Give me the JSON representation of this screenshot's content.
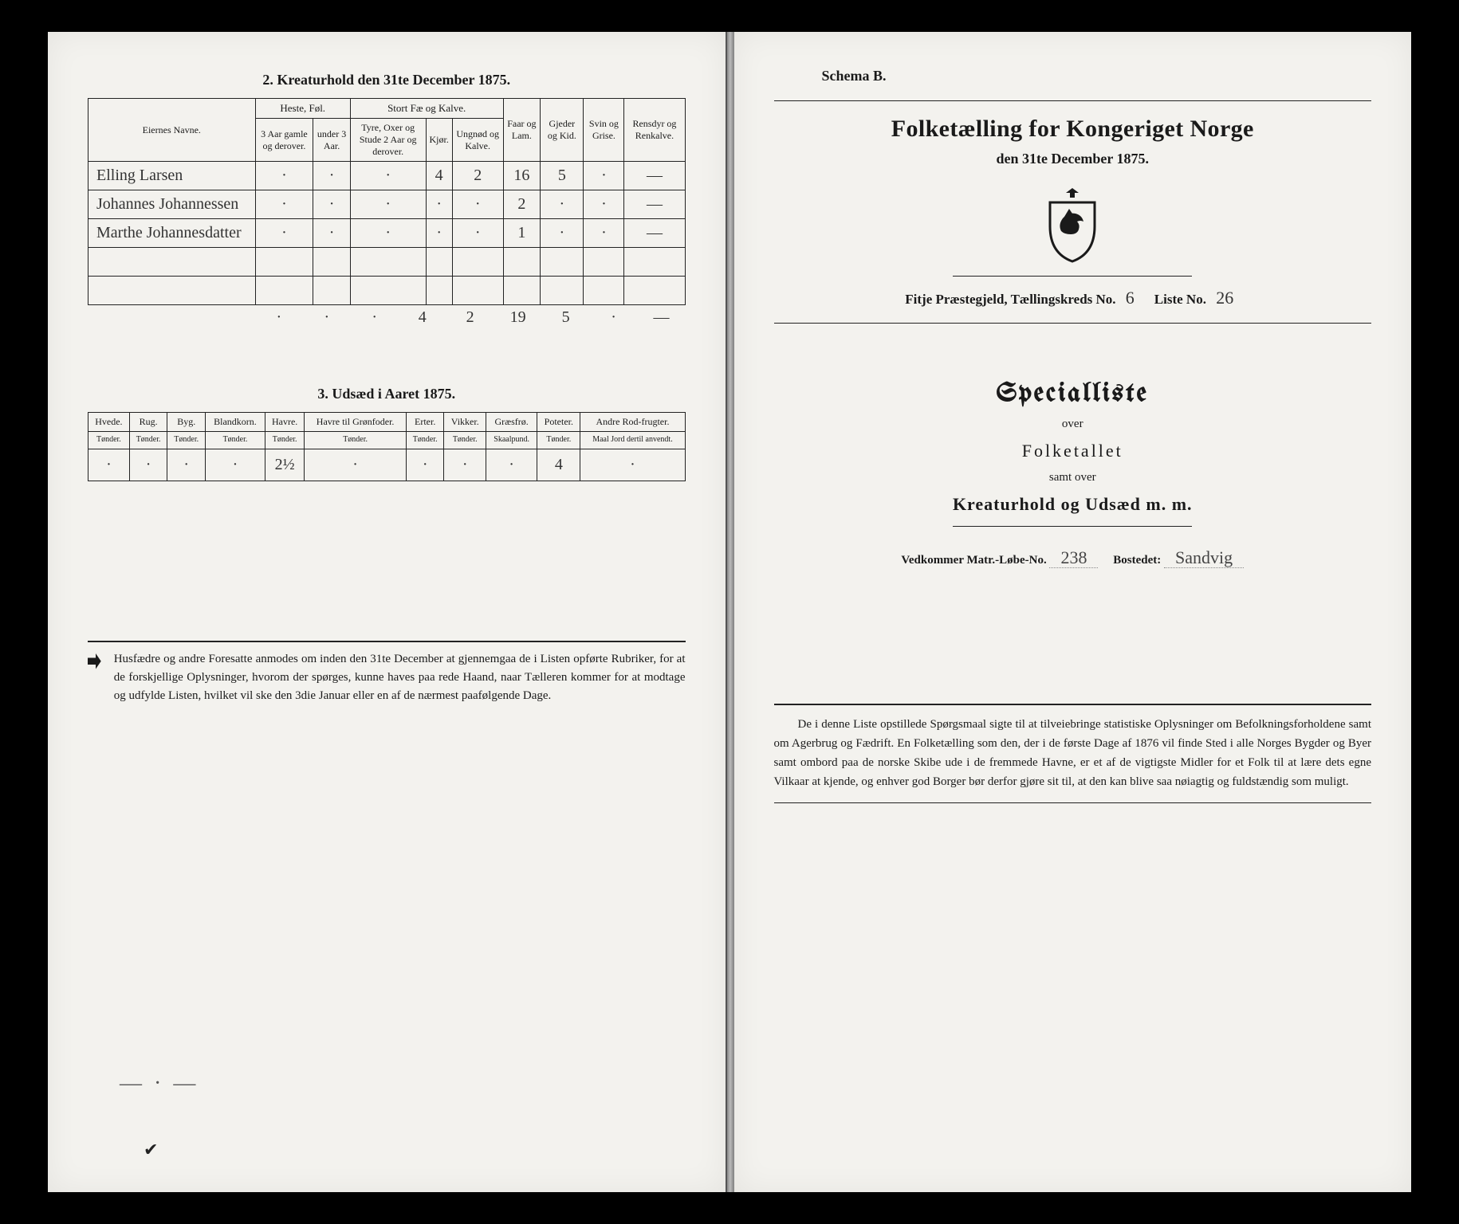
{
  "colors": {
    "page_bg": "#f3f2ee",
    "ink": "#1a1a1a",
    "handwriting": "#333333",
    "rule": "#222222",
    "frame": "#000000"
  },
  "left_page": {
    "section2": {
      "title": "2.  Kreaturhold den 31te December 1875.",
      "col_owner": "Eiernes Navne.",
      "group_horse": "Heste, Føl.",
      "col_horse_a": "3 Aar gamle og derover.",
      "col_horse_b": "under 3 Aar.",
      "group_cattle": "Stort Fæ og Kalve.",
      "col_cattle_a": "Tyre, Oxer og Stude 2 Aar og derover.",
      "col_cattle_b": "Kjør.",
      "col_cattle_c": "Ungnød og Kalve.",
      "col_sheep": "Faar og Lam.",
      "col_goats": "Gjeder og Kid.",
      "col_pigs": "Svin og Grise.",
      "col_reindeer": "Rensdyr og Renkalve.",
      "rows": [
        {
          "name": "Elling Larsen",
          "c": [
            "·",
            "·",
            "·",
            "4",
            "2",
            "16",
            "5",
            "·",
            "—"
          ]
        },
        {
          "name": "Johannes Johannessen",
          "c": [
            "·",
            "·",
            "·",
            "·",
            "·",
            "2",
            "·",
            "·",
            "—"
          ]
        },
        {
          "name": "Marthe Johannesdatter",
          "c": [
            "·",
            "·",
            "·",
            "·",
            "·",
            "1",
            "·",
            "·",
            "—"
          ]
        },
        {
          "name": "",
          "c": [
            "",
            "",
            "",
            "",
            "",
            "",
            "",
            "",
            ""
          ]
        },
        {
          "name": "",
          "c": [
            "",
            "",
            "",
            "",
            "",
            "",
            "",
            "",
            ""
          ]
        }
      ],
      "totals": [
        "·",
        "·",
        "·",
        "4",
        "2",
        "19",
        "5",
        "·",
        "—"
      ]
    },
    "section3": {
      "title": "3.  Udsæd i Aaret 1875.",
      "headers": [
        {
          "t": "Hvede.",
          "s": "Tønder."
        },
        {
          "t": "Rug.",
          "s": "Tønder."
        },
        {
          "t": "Byg.",
          "s": "Tønder."
        },
        {
          "t": "Blandkorn.",
          "s": "Tønder."
        },
        {
          "t": "Havre.",
          "s": "Tønder."
        },
        {
          "t": "Havre til Grønfoder.",
          "s": "Tønder."
        },
        {
          "t": "Erter.",
          "s": "Tønder."
        },
        {
          "t": "Vikker.",
          "s": "Tønder."
        },
        {
          "t": "Græsfrø.",
          "s": "Skaalpund."
        },
        {
          "t": "Poteter.",
          "s": "Tønder."
        },
        {
          "t": "Andre Rod-frugter.",
          "s": "Maal Jord dertil anvendt."
        }
      ],
      "values": [
        "·",
        "·",
        "·",
        "·",
        "2½",
        "·",
        "·",
        "·",
        "·",
        "4",
        "·"
      ]
    },
    "footnote": "Husfædre og andre Foresatte anmodes om inden den 31te December at gjennemgaa de i Listen opførte Rubriker, for at de forskjellige Oplysninger, hvorom der spørges, kunne haves paa rede Haand, naar Tælleren kommer for at modtage og udfylde Listen, hvilket vil ske den 3die Januar eller en af de nærmest paafølgende Dage."
  },
  "right_page": {
    "schema": "Schema B.",
    "title": "Folketælling for Kongeriget Norge",
    "subtitle": "den 31te December 1875.",
    "parish_line": {
      "prefix": "Fitje Præstegjeld,  Tællingskreds No.",
      "kreds_no": "6",
      "mid": "Liste No.",
      "liste_no": "26"
    },
    "spec_title": "Specialliste",
    "over": "over",
    "folketallet": "Folketallet",
    "samt_over": "samt over",
    "kreatur": "Kreaturhold og Udsæd m. m.",
    "matr_line": {
      "label1": "Vedkommer Matr.-Løbe-No.",
      "val1": "238",
      "label2": "Bostedet:",
      "val2": "Sandvig"
    },
    "footnote": "De i denne Liste opstillede Spørgsmaal sigte til at tilveiebringe statistiske Oplysninger om Befolkningsforholdene samt om Agerbrug og Fædrift.  En Folketælling som den, der i de første Dage af 1876 vil finde Sted i alle Norges Bygder og Byer samt ombord paa de norske Skibe ude i de fremmede Havne, er et af de vigtigste Midler for et Folk til at lære dets egne Vilkaar at kjende, og enhver god Borger bør derfor gjøre sit til, at den kan blive saa nøiagtig og fuldstændig som muligt."
  }
}
